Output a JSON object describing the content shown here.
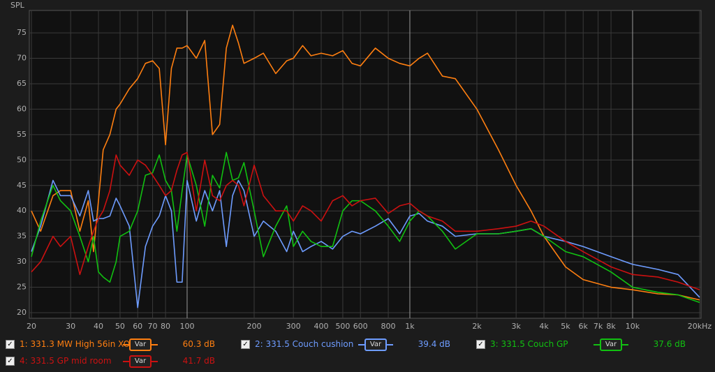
{
  "chart_data": {
    "type": "line",
    "y_label": "SPL",
    "log_x": true,
    "grid": true,
    "xlim": [
      20,
      20000
    ],
    "ylim": [
      18.9,
      79.4
    ],
    "xticks": [
      20,
      30,
      40,
      50,
      60,
      70,
      80,
      100,
      200,
      300,
      400,
      500,
      600,
      800,
      {
        "value": 1000,
        "label": "1k"
      },
      {
        "value": 2000,
        "label": "2k"
      },
      {
        "value": 3000,
        "label": "3k"
      },
      {
        "value": 4000,
        "label": "4k"
      },
      {
        "value": 5000,
        "label": "5k"
      },
      {
        "value": 6000,
        "label": "6k"
      },
      {
        "value": 7000,
        "label": "7k"
      },
      {
        "value": 8000,
        "label": "8k"
      },
      {
        "value": 10000,
        "label": "10k"
      },
      {
        "value": 20000,
        "label": "20kHz"
      }
    ],
    "yticks": [
      20,
      25,
      30,
      35,
      40,
      45,
      50,
      55,
      60,
      65,
      70,
      75
    ],
    "x": [
      20,
      22,
      25,
      27,
      30,
      33,
      36,
      38,
      40,
      42,
      45,
      48,
      50,
      55,
      60,
      65,
      70,
      75,
      80,
      85,
      90,
      95,
      100,
      110,
      120,
      130,
      140,
      150,
      160,
      170,
      180,
      200,
      220,
      250,
      280,
      300,
      330,
      360,
      400,
      450,
      500,
      550,
      600,
      700,
      800,
      900,
      1000,
      1100,
      1200,
      1400,
      1600,
      2000,
      2500,
      3000,
      3500,
      4000,
      5000,
      6000,
      8000,
      10000,
      13000,
      16000,
      20000
    ],
    "series": [
      {
        "name": "1: 331.3 MW High 56in XO",
        "button": "Var",
        "level": "60.3 dB",
        "color": "#ff7f11",
        "values": [
          40,
          36,
          43,
          44,
          44,
          36,
          42,
          32,
          42,
          52,
          55,
          60,
          61,
          64,
          66,
          69,
          69.5,
          68,
          53,
          68,
          72,
          72,
          72.5,
          70,
          73.5,
          55,
          57,
          72,
          76.5,
          73,
          69,
          70,
          71,
          67,
          69.5,
          70,
          72.5,
          70.5,
          71,
          70.5,
          71.5,
          69,
          68.5,
          72,
          70,
          69,
          68.5,
          70,
          71,
          66.5,
          66,
          60,
          52,
          45,
          40,
          35,
          29,
          26.5,
          25,
          24.5,
          23.7,
          23.5,
          22.5
        ]
      },
      {
        "name": "2: 331.5 Couch cushion",
        "button": "Var",
        "level": "39.4 dB",
        "color": "#6e9cff",
        "values": [
          32,
          37,
          46,
          43,
          43,
          39,
          44,
          38,
          38.5,
          38.5,
          39,
          42.5,
          41,
          37,
          21,
          33,
          37,
          39,
          43,
          40,
          26,
          26,
          46,
          38,
          44,
          40,
          44,
          33,
          43,
          46,
          44,
          35,
          38,
          36,
          32,
          36,
          32,
          33,
          34,
          32.5,
          35,
          36,
          35.5,
          37,
          38.5,
          35.5,
          39,
          39.5,
          38,
          37,
          35,
          35.5,
          35.5,
          36,
          36.5,
          35,
          34,
          33,
          31,
          29.5,
          28.5,
          27.5,
          23
        ]
      },
      {
        "name": "3: 331.5 Couch GP",
        "button": "Var",
        "level": "37.6 dB",
        "color": "#11c011",
        "values": [
          31,
          38,
          45,
          42,
          40,
          35,
          30,
          35,
          28,
          27,
          26,
          30,
          35,
          36,
          40,
          47,
          47.5,
          51,
          46,
          44,
          36,
          44,
          51,
          45,
          37,
          47,
          44.5,
          51.5,
          46,
          46.5,
          49.5,
          40,
          31,
          37,
          41,
          33,
          36,
          34,
          33,
          33,
          40,
          42,
          42,
          40,
          37,
          34,
          38,
          40,
          39,
          36,
          32.5,
          35.5,
          35.5,
          36,
          36.5,
          35,
          32,
          31,
          28,
          25,
          24,
          23.5,
          22
        ]
      },
      {
        "name": "4: 331.5 GP mid room",
        "button": "Var",
        "level": "41.7 dB",
        "color": "#cc1111",
        "values": [
          28,
          30,
          35,
          33,
          35,
          27.5,
          33,
          36,
          38.5,
          40,
          44,
          51,
          49,
          47,
          50,
          49,
          47,
          45,
          43,
          44,
          48,
          51,
          51.5,
          40,
          50,
          43,
          42,
          45,
          46,
          45,
          41,
          49,
          43,
          40,
          40,
          38,
          41,
          40,
          38,
          42,
          43,
          41,
          42,
          42.5,
          39.5,
          41,
          41.5,
          40,
          39,
          38,
          36,
          36,
          36.5,
          37,
          38,
          37,
          34,
          32,
          29,
          27.5,
          27,
          26,
          24.5
        ]
      }
    ]
  }
}
